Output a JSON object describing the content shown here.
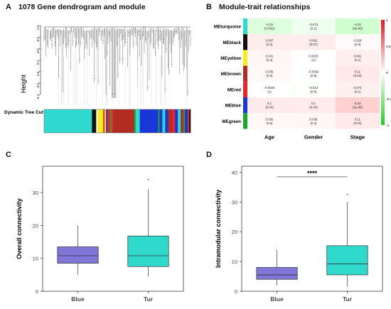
{
  "panel_a": {
    "letter": "A",
    "title": "1078 Gene dendrogram and module",
    "ylabel": "Height",
    "yticks": [
      "1.0",
      "0.9",
      "0.8",
      "0.7",
      "0.6",
      "0.5",
      "0.4"
    ],
    "tree_cut_label": "Dynamic Tree Cut",
    "module_bands": [
      {
        "color": "#2fd9d0",
        "width": 0.34
      },
      {
        "color": "#111111",
        "width": 0.03
      },
      {
        "color": "#ffffff",
        "width": 0.01
      },
      {
        "color": "#f6ee1c",
        "width": 0.04
      },
      {
        "color": "#e9262a",
        "width": 0.01
      },
      {
        "color": "#f6ee1c",
        "width": 0.01
      },
      {
        "color": "#1a35d8",
        "width": 0.01
      },
      {
        "color": "#e9262a",
        "width": 0.02
      },
      {
        "color": "#1aa82a",
        "width": 0.01
      },
      {
        "color": "#e9262a",
        "width": 0.01
      },
      {
        "color": "#b22c24",
        "width": 0.15
      },
      {
        "color": "#1aa82a",
        "width": 0.01
      },
      {
        "color": "#2fd9d0",
        "width": 0.03
      },
      {
        "color": "#1a35d8",
        "width": 0.13
      },
      {
        "color": "#1aa82a",
        "width": 0.01
      },
      {
        "color": "#1a35d8",
        "width": 0.02
      },
      {
        "color": "#2fd9d0",
        "width": 0.02
      },
      {
        "color": "#1a35d8",
        "width": 0.02
      },
      {
        "color": "#b22c24",
        "width": 0.03
      },
      {
        "color": "#e9262a",
        "width": 0.02
      },
      {
        "color": "#1a35d8",
        "width": 0.02
      },
      {
        "color": "#2fd9d0",
        "width": 0.02
      },
      {
        "color": "#b22c24",
        "width": 0.02
      },
      {
        "color": "#1aa82a",
        "width": 0.01
      },
      {
        "color": "#1a35d8",
        "width": 0.02
      },
      {
        "color": "#e9262a",
        "width": 0.01
      },
      {
        "color": "#111111",
        "width": 0.01
      }
    ]
  },
  "panel_b": {
    "letter": "B",
    "title": "Module-trait relationships",
    "traits": [
      "Age",
      "Gender",
      "Stage"
    ],
    "colorbar_ticks": [
      "1",
      "0.5",
      "0",
      "-0.5",
      "-1"
    ],
    "modules": [
      {
        "name": "MEturquoise",
        "swatch": "#2fd9d0",
        "cells": [
          {
            "r": "-0.15",
            "p": "(0.002)",
            "v": -0.15
          },
          {
            "r": "-0.073",
            "p": "(0.1)",
            "v": -0.073
          },
          {
            "r": "-0.21",
            "p": "(3e-05)",
            "v": -0.21
          }
        ]
      },
      {
        "name": "MEblack",
        "swatch": "#111111",
        "cells": [
          {
            "r": "0.097",
            "p": "(0.2)",
            "v": 0.097
          },
          {
            "r": "0.091",
            "p": "(0.07)",
            "v": 0.091
          },
          {
            "r": "0.028",
            "p": "(0.6)",
            "v": 0.028
          }
        ]
      },
      {
        "name": "MEyellow",
        "swatch": "#f6ee1c",
        "cells": [
          {
            "r": "0.041",
            "p": "(0.4)",
            "v": 0.041
          },
          {
            "r": "0.0025",
            "p": "(1)",
            "v": 0.0025
          },
          {
            "r": "0.081",
            "p": "(0.1)",
            "v": 0.081
          }
        ]
      },
      {
        "name": "MEbrown",
        "swatch": "#b22c24",
        "cells": [
          {
            "r": "0.035",
            "p": "(0.5)",
            "v": 0.035
          },
          {
            "r": "-0.0054",
            "p": "(0.9)",
            "v": -0.0054
          },
          {
            "r": "0.11",
            "p": "(0.03)",
            "v": 0.11
          }
        ]
      },
      {
        "name": "MEred",
        "swatch": "#e9262a",
        "cells": [
          {
            "r": "-0.0025",
            "p": "(1)",
            "v": -0.0025
          },
          {
            "r": "-0.013",
            "p": "(0.8)",
            "v": -0.013
          },
          {
            "r": "0.074",
            "p": "(0.1)",
            "v": 0.074
          }
        ]
      },
      {
        "name": "MEblue",
        "swatch": "#1a35d8",
        "cells": [
          {
            "r": "0.1",
            "p": "(0.04)",
            "v": 0.1
          },
          {
            "r": "0.1",
            "p": "(0.04)",
            "v": 0.1
          },
          {
            "r": "0.23",
            "p": "(3e-06)",
            "v": 0.23
          }
        ]
      },
      {
        "name": "MEgreen",
        "swatch": "#1aa82a",
        "cells": [
          {
            "r": "0.035",
            "p": "(0.5)",
            "v": 0.035
          },
          {
            "r": "0.039",
            "p": "(0.4)",
            "v": 0.039
          },
          {
            "r": "0.11",
            "p": "(0.03)",
            "v": 0.11
          }
        ]
      }
    ]
  },
  "panel_c": {
    "letter": "C",
    "chart_data": {
      "type": "box",
      "ylabel": "Overall connectivity",
      "xlabel": "",
      "ylim": [
        0,
        38
      ],
      "yticks": [
        0,
        10,
        20,
        30
      ],
      "categories": [
        "Blue",
        "Tur"
      ],
      "colors": [
        "#8076d8",
        "#2fdacd"
      ],
      "boxes": [
        {
          "name": "Blue",
          "whisker_low": 5,
          "q1": 8.5,
          "median": 10.8,
          "q3": 13.5,
          "whisker_high": 20,
          "outliers": []
        },
        {
          "name": "Tur",
          "whisker_low": 4.5,
          "q1": 7.5,
          "median": 10.8,
          "q3": 16.8,
          "whisker_high": 31,
          "outliers": [
            34
          ]
        }
      ]
    }
  },
  "panel_d": {
    "letter": "D",
    "chart_data": {
      "type": "box",
      "ylabel": "Intramodular connectivity",
      "xlabel": "",
      "ylim": [
        0,
        42
      ],
      "yticks": [
        0,
        10,
        20,
        30,
        40
      ],
      "categories": [
        "Blue",
        "Tur"
      ],
      "colors": [
        "#8076d8",
        "#2fdacd"
      ],
      "significance": "****",
      "boxes": [
        {
          "name": "Blue",
          "whisker_low": 2,
          "q1": 4,
          "median": 5.5,
          "q3": 8,
          "whisker_high": 14,
          "outliers": []
        },
        {
          "name": "Tur",
          "whisker_low": 1.5,
          "q1": 5.5,
          "median": 9.2,
          "q3": 15.3,
          "whisker_high": 30,
          "outliers": [
            32.5
          ]
        }
      ]
    }
  }
}
